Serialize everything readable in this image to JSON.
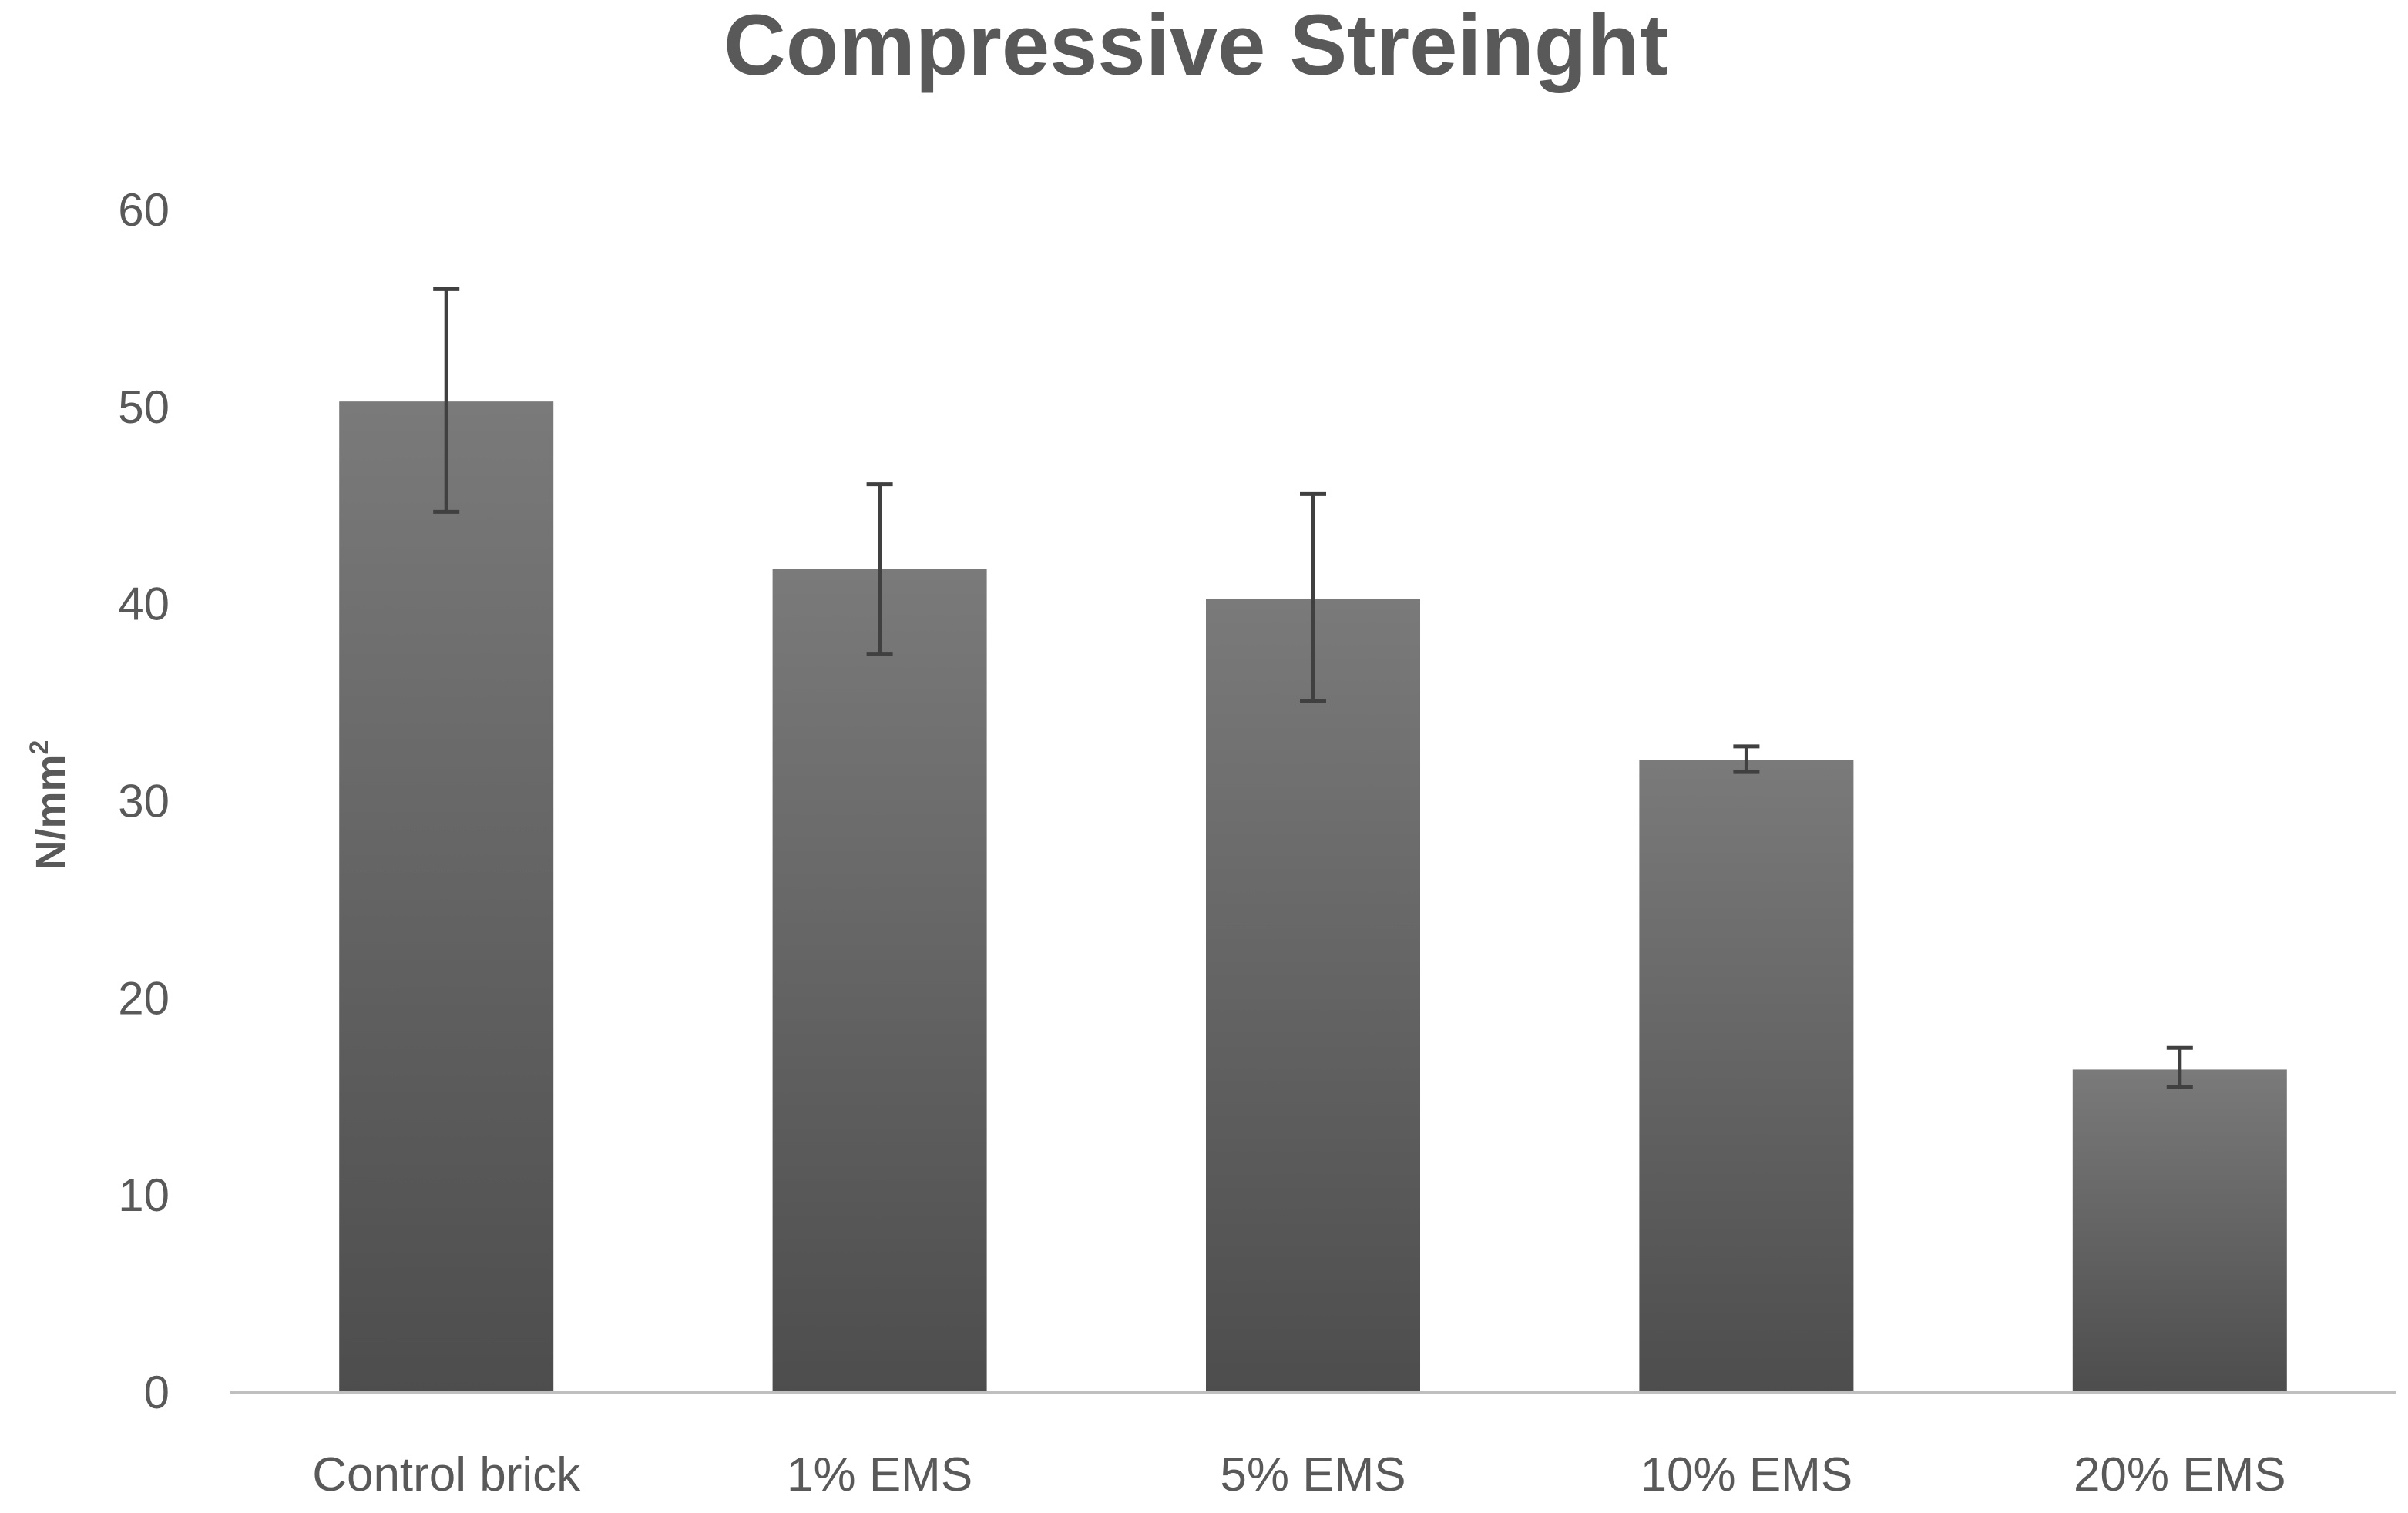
{
  "chart_data": {
    "type": "bar",
    "title": "Compressive Streinght",
    "xlabel": "",
    "ylabel": "N/mm",
    "ylabel_superscript": "2",
    "categories": [
      "Control brick",
      "1% EMS",
      "5% EMS",
      "10% EMS",
      "20% EMS"
    ],
    "values": [
      50.3,
      41.8,
      40.3,
      32.1,
      16.4
    ],
    "error_plus": [
      5.7,
      4.3,
      5.3,
      0.7,
      1.1
    ],
    "error_minus": [
      5.6,
      4.3,
      5.2,
      0.6,
      0.9
    ],
    "ylim": [
      0,
      60
    ],
    "yticks": [
      0,
      10,
      20,
      30,
      40,
      50,
      60
    ],
    "grid": false,
    "legend": "none",
    "colors": {
      "bar_top": "#7a7a7a",
      "bar_bottom": "#4d4d4d",
      "error_bar": "#404040",
      "axis_line": "#bfbfbf",
      "text": "#595959"
    }
  }
}
